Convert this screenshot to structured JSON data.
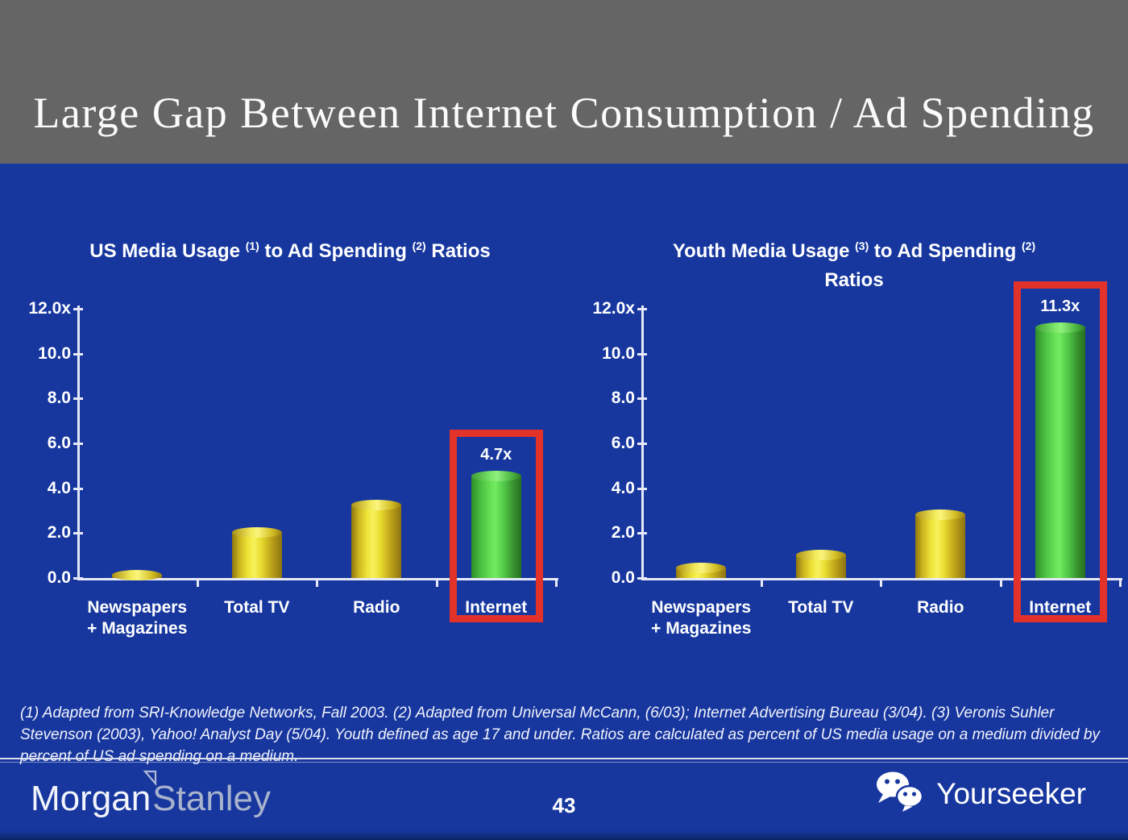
{
  "slide": {
    "title": "Large Gap Between Internet Consumption / Ad Spending",
    "page_number": "43",
    "footnote": "(1) Adapted from SRI-Knowledge Networks, Fall 2003.  (2) Adapted from Universal McCann, (6/03); Internet Advertising Bureau (3/04). (3) Veronis Suhler Stevenson (2003), Yahoo! Analyst Day (5/04).  Youth defined as age 17 and under.  Ratios are calculated as percent of US media usage on a medium divided by percent of US ad spending on a medium."
  },
  "footer": {
    "brand_part1": "Morgan",
    "brand_part2": "Stanley",
    "watermark": "Yourseeker",
    "icons": [
      "morgan-stanley-triangle-icon",
      "wechat-icon"
    ]
  },
  "chart_data": [
    {
      "type": "bar",
      "title": "US Media Usage (1) to Ad Spending (2) Ratios",
      "title_segments": [
        {
          "t": "US Media Usage "
        },
        {
          "sup": "(1)"
        },
        {
          "t": " to Ad Spending "
        },
        {
          "sup": "(2)"
        },
        {
          "t": " Ratios"
        }
      ],
      "categories": [
        "Newspapers\n+ Magazines",
        "Total TV",
        "Radio",
        "Internet"
      ],
      "values": [
        0.3,
        2.2,
        3.4,
        4.7
      ],
      "bar_colors": [
        "yellow",
        "yellow",
        "yellow",
        "green"
      ],
      "highlight_index": 3,
      "highlight_label": "4.7x",
      "ylim": [
        0,
        12
      ],
      "yticks": [
        "12.0x",
        "10.0",
        "8.0",
        "6.0",
        "4.0",
        "2.0",
        "0.0"
      ],
      "grid": false,
      "legend": null
    },
    {
      "type": "bar",
      "title": "Youth Media Usage (3) to Ad Spending (2) Ratios",
      "title_segments": [
        {
          "t": "Youth Media Usage "
        },
        {
          "sup": "(3)"
        },
        {
          "t": " to Ad Spending "
        },
        {
          "sup": "(2)"
        },
        {
          "br": true
        },
        {
          "t": "Ratios"
        }
      ],
      "categories": [
        "Newspapers\n+ Magazines",
        "Total TV",
        "Radio",
        "Internet"
      ],
      "values": [
        0.6,
        1.2,
        3.0,
        11.3
      ],
      "bar_colors": [
        "yellow",
        "yellow",
        "yellow",
        "green"
      ],
      "highlight_index": 3,
      "highlight_label": "11.3x",
      "ylim": [
        0,
        12
      ],
      "yticks": [
        "12.0x",
        "10.0",
        "8.0",
        "6.0",
        "4.0",
        "2.0",
        "0.0"
      ],
      "grid": false,
      "legend": null
    }
  ],
  "colors": {
    "background": "#17379f",
    "header_gray": "#666566",
    "bar_yellow": "#efe23a",
    "bar_green": "#55cc4a",
    "highlight_red": "#e2322a",
    "axis_line": "#e6e9f7",
    "text": "#ffffff"
  }
}
